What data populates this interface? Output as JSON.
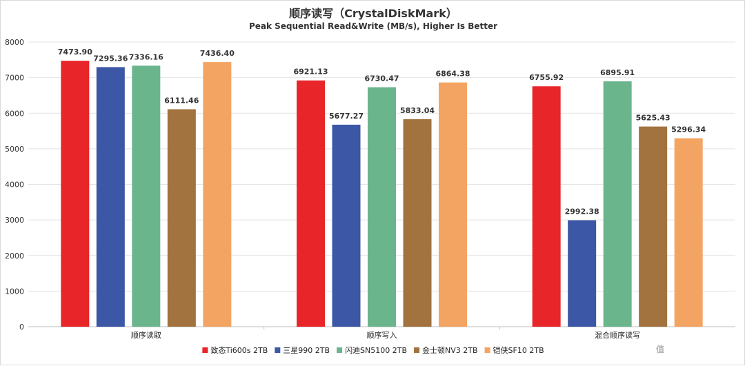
{
  "chart_data": {
    "type": "bar",
    "title": "顺序读写（CrystalDiskMark）",
    "subtitle": "Peak Sequential Read&Write (MB/s), Higher Is Better",
    "categories": [
      "顺序读取",
      "顺序写入",
      "混合顺序读写"
    ],
    "ylim": [
      0,
      8000
    ],
    "yticks": [
      0,
      1000,
      2000,
      3000,
      4000,
      5000,
      6000,
      7000,
      8000
    ],
    "grid": true,
    "legend_position": "bottom",
    "series": [
      {
        "name": "致态Ti600s 2TB",
        "color": "#e8262a",
        "values": [
          7473.9,
          6921.13,
          6755.92
        ],
        "labels": [
          "7473.90",
          "6921.13",
          "6755.92"
        ]
      },
      {
        "name": "三星990 2TB",
        "color": "#3c57a6",
        "values": [
          7295.36,
          5677.27,
          2992.38
        ],
        "labels": [
          "7295.36",
          "5677.27",
          "2992.38"
        ]
      },
      {
        "name": "闪迪SN5100 2TB",
        "color": "#6bb58d",
        "values": [
          7336.16,
          6730.47,
          6895.91
        ],
        "labels": [
          "7336.16",
          "6730.47",
          "6895.91"
        ]
      },
      {
        "name": "金士顿NV3 2TB",
        "color": "#a2723f",
        "values": [
          6111.46,
          5833.04,
          5625.43
        ],
        "labels": [
          "6111.46",
          "5833.04",
          "5625.43"
        ]
      },
      {
        "name": "铠侠SF10 2TB",
        "color": "#f4a462",
        "values": [
          7436.4,
          6864.38,
          5296.34
        ],
        "labels": [
          "7436.40",
          "6864.38",
          "5296.34"
        ]
      }
    ]
  },
  "watermark": {
    "text": "什么值得买",
    "icon": "smzdm-logo-icon"
  }
}
